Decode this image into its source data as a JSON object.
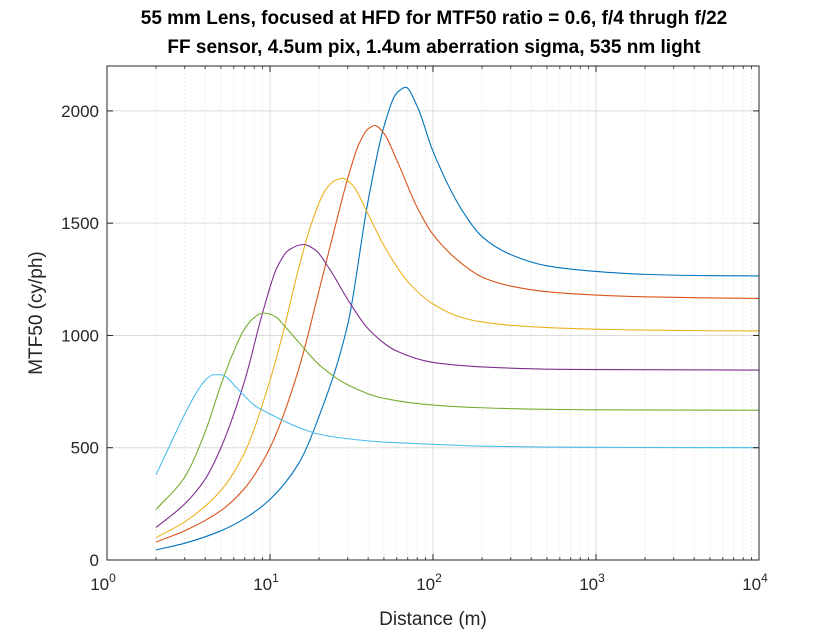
{
  "chart_data": {
    "type": "line",
    "title": "55 mm Lens, focused at HFD for MTF50 ratio = 0.6, f/4 thrugh f/22",
    "subtitle": "FF sensor, 4.5um pix, 1.4um aberration sigma, 535 nm light",
    "xlabel": "Distance (m)",
    "ylabel": "MTF50 (cy/ph)",
    "x_scale": "log",
    "xlim": [
      1,
      10000
    ],
    "ylim": [
      0,
      2200
    ],
    "x_ticks": [
      {
        "base": "10",
        "exp": "0"
      },
      {
        "base": "10",
        "exp": "1"
      },
      {
        "base": "10",
        "exp": "2"
      },
      {
        "base": "10",
        "exp": "3"
      },
      {
        "base": "10",
        "exp": "4"
      }
    ],
    "y_ticks": [
      "0",
      "500",
      "1000",
      "1500",
      "2000"
    ],
    "grid": true,
    "series": [
      {
        "color": "#0072BD",
        "x": [
          2,
          3,
          5,
          7,
          10,
          15,
          20,
          30,
          40,
          50,
          60,
          68,
          80,
          100,
          150,
          200,
          300,
          500,
          1000,
          2000,
          5000,
          10000
        ],
        "y": [
          45,
          75,
          130,
          185,
          270,
          430,
          640,
          1050,
          1600,
          1930,
          2080,
          2105,
          2020,
          1820,
          1560,
          1440,
          1360,
          1310,
          1285,
          1272,
          1266,
          1265
        ]
      },
      {
        "color": "#D95319",
        "x": [
          2,
          3,
          5,
          7,
          10,
          15,
          20,
          25,
          30,
          35,
          40,
          44,
          50,
          60,
          80,
          100,
          150,
          200,
          300,
          500,
          1000,
          2000,
          5000,
          10000
        ],
        "y": [
          80,
          130,
          220,
          320,
          500,
          850,
          1200,
          1480,
          1700,
          1850,
          1920,
          1935,
          1900,
          1780,
          1570,
          1450,
          1320,
          1260,
          1220,
          1195,
          1180,
          1172,
          1167,
          1165
        ]
      },
      {
        "color": "#EDB120",
        "x": [
          2,
          3,
          5,
          7,
          10,
          12,
          15,
          18,
          22,
          25,
          28,
          32,
          40,
          50,
          70,
          100,
          150,
          200,
          300,
          500,
          1000,
          2000,
          5000,
          10000
        ],
        "y": [
          100,
          170,
          310,
          480,
          800,
          1010,
          1300,
          1500,
          1650,
          1690,
          1700,
          1670,
          1540,
          1400,
          1240,
          1140,
          1080,
          1060,
          1045,
          1035,
          1028,
          1024,
          1021,
          1020
        ]
      },
      {
        "color": "#7E2F8E",
        "x": [
          2,
          3,
          4,
          5,
          7,
          9,
          11,
          13,
          16,
          19,
          23,
          30,
          40,
          60,
          100,
          200,
          500,
          1000,
          10000
        ],
        "y": [
          145,
          250,
          360,
          500,
          800,
          1100,
          1300,
          1380,
          1405,
          1380,
          1300,
          1160,
          1030,
          930,
          880,
          860,
          850,
          848,
          846
        ]
      },
      {
        "color": "#77AC30",
        "x": [
          2,
          3,
          4,
          5,
          6,
          7,
          8,
          9,
          10,
          11,
          12,
          15,
          20,
          30,
          50,
          100,
          200,
          500,
          1000,
          10000
        ],
        "y": [
          225,
          370,
          570,
          780,
          930,
          1030,
          1080,
          1100,
          1095,
          1080,
          1050,
          970,
          870,
          780,
          720,
          690,
          678,
          671,
          669,
          667
        ]
      },
      {
        "color": "#4DBEEE",
        "x": [
          2,
          2.5,
          3,
          3.5,
          4,
          4.5,
          5,
          5.5,
          6,
          7,
          8,
          10,
          15,
          20,
          30,
          50,
          100,
          200,
          500,
          1000,
          10000
        ],
        "y": [
          380,
          530,
          650,
          740,
          800,
          825,
          825,
          810,
          780,
          730,
          690,
          650,
          590,
          560,
          540,
          525,
          515,
          507,
          503,
          502,
          500
        ]
      }
    ]
  }
}
